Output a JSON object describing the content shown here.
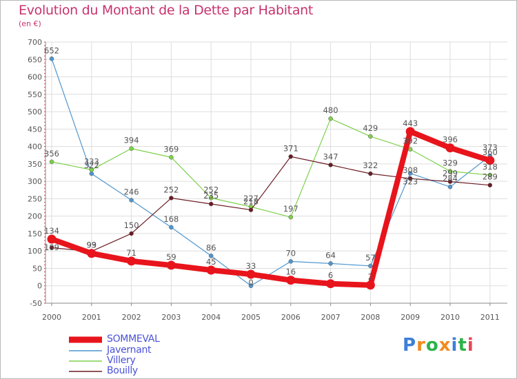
{
  "header": {
    "title": "Evolution du Montant de la Dette par Habitant",
    "subtitle": "(en €)"
  },
  "logo": {
    "text": "Proxiti",
    "colors": [
      "#3d7fd8",
      "#f28a1e",
      "#2db34a",
      "#f28a1e",
      "#3d7fd8",
      "#2db34a",
      "#e8455c"
    ]
  },
  "chart_data": {
    "type": "line",
    "x": [
      "2000",
      "2001",
      "2002",
      "2003",
      "2004",
      "2005",
      "2006",
      "2007",
      "2008",
      "2009",
      "2010",
      "2011"
    ],
    "ylim": [
      -50,
      700
    ],
    "yticks": [
      -50,
      0,
      50,
      100,
      150,
      200,
      250,
      300,
      350,
      400,
      450,
      500,
      550,
      600,
      650,
      700
    ],
    "grid": true,
    "legend_position": "bottom-left",
    "series": [
      {
        "name": "SOMMEVAL",
        "color": "#e8141c",
        "values": [
          134,
          93,
          71,
          59,
          45,
          33,
          16,
          6,
          2,
          443,
          396,
          360
        ]
      },
      {
        "name": "Javernant",
        "color": "#4f96cf",
        "values": [
          652,
          322,
          246,
          168,
          86,
          0,
          70,
          64,
          57,
          323,
          284,
          373
        ]
      },
      {
        "name": "Villery",
        "color": "#7ed04b",
        "values": [
          356,
          333,
          394,
          369,
          252,
          227,
          197,
          480,
          429,
          392,
          329,
          318
        ]
      },
      {
        "name": "Bouilly",
        "color": "#6b1c24",
        "values": [
          109,
          99,
          150,
          252,
          235,
          218,
          371,
          347,
          322,
          308,
          299,
          289
        ]
      }
    ],
    "labels": [
      {
        "text": "652",
        "x": 0,
        "y": 652,
        "pos": "above"
      },
      {
        "text": "356",
        "x": 0,
        "y": 356,
        "pos": "above"
      },
      {
        "text": "134",
        "x": 0,
        "y": 134,
        "pos": "above"
      },
      {
        "text": "109",
        "x": 0,
        "y": 134,
        "pos": "below"
      },
      {
        "text": "322",
        "x": 1,
        "y": 322,
        "pos": "above"
      },
      {
        "text": "333",
        "x": 1,
        "y": 333,
        "pos": "above"
      },
      {
        "text": "93",
        "x": 1,
        "y": 93,
        "pos": "above"
      },
      {
        "text": "99",
        "x": 1,
        "y": 93,
        "pos": "above"
      },
      {
        "text": "394",
        "x": 2,
        "y": 394,
        "pos": "above"
      },
      {
        "text": "246",
        "x": 2,
        "y": 246,
        "pos": "above"
      },
      {
        "text": "150",
        "x": 2,
        "y": 150,
        "pos": "above"
      },
      {
        "text": "71",
        "x": 2,
        "y": 71,
        "pos": "above"
      },
      {
        "text": "369",
        "x": 3,
        "y": 369,
        "pos": "above"
      },
      {
        "text": "252",
        "x": 3,
        "y": 252,
        "pos": "above"
      },
      {
        "text": "168",
        "x": 3,
        "y": 168,
        "pos": "above"
      },
      {
        "text": "59",
        "x": 3,
        "y": 59,
        "pos": "above"
      },
      {
        "text": "252",
        "x": 4,
        "y": 252,
        "pos": "above"
      },
      {
        "text": "235",
        "x": 4,
        "y": 235,
        "pos": "above"
      },
      {
        "text": "86",
        "x": 4,
        "y": 86,
        "pos": "above"
      },
      {
        "text": "45",
        "x": 4,
        "y": 45,
        "pos": "above"
      },
      {
        "text": "227",
        "x": 5,
        "y": 227,
        "pos": "above"
      },
      {
        "text": "218",
        "x": 5,
        "y": 218,
        "pos": "above"
      },
      {
        "text": "33",
        "x": 5,
        "y": 33,
        "pos": "above"
      },
      {
        "text": "0",
        "x": 5,
        "y": 33,
        "pos": "below"
      },
      {
        "text": "371",
        "x": 6,
        "y": 371,
        "pos": "above"
      },
      {
        "text": "197",
        "x": 6,
        "y": 197,
        "pos": "above"
      },
      {
        "text": "70",
        "x": 6,
        "y": 70,
        "pos": "above"
      },
      {
        "text": "16",
        "x": 6,
        "y": 16,
        "pos": "above"
      },
      {
        "text": "480",
        "x": 7,
        "y": 480,
        "pos": "above"
      },
      {
        "text": "347",
        "x": 7,
        "y": 347,
        "pos": "above"
      },
      {
        "text": "64",
        "x": 7,
        "y": 64,
        "pos": "above"
      },
      {
        "text": "6",
        "x": 7,
        "y": 6,
        "pos": "above"
      },
      {
        "text": "429",
        "x": 8,
        "y": 429,
        "pos": "above"
      },
      {
        "text": "322",
        "x": 8,
        "y": 322,
        "pos": "above"
      },
      {
        "text": "57",
        "x": 8,
        "y": 57,
        "pos": "above"
      },
      {
        "text": "2",
        "x": 8,
        "y": 2,
        "pos": "above"
      },
      {
        "text": "443",
        "x": 9,
        "y": 443,
        "pos": "above"
      },
      {
        "text": "392",
        "x": 9,
        "y": 392,
        "pos": "above"
      },
      {
        "text": "308",
        "x": 9,
        "y": 308,
        "pos": "above"
      },
      {
        "text": "323",
        "x": 9,
        "y": 323,
        "pos": "below"
      },
      {
        "text": "396",
        "x": 10,
        "y": 396,
        "pos": "above"
      },
      {
        "text": "329",
        "x": 10,
        "y": 329,
        "pos": "above"
      },
      {
        "text": "299",
        "x": 10,
        "y": 299,
        "pos": "above"
      },
      {
        "text": "284",
        "x": 10,
        "y": 284,
        "pos": "above"
      },
      {
        "text": "373",
        "x": 11,
        "y": 373,
        "pos": "above"
      },
      {
        "text": "360",
        "x": 11,
        "y": 360,
        "pos": "above"
      },
      {
        "text": "318",
        "x": 11,
        "y": 318,
        "pos": "above"
      },
      {
        "text": "289",
        "x": 11,
        "y": 289,
        "pos": "above"
      }
    ]
  }
}
